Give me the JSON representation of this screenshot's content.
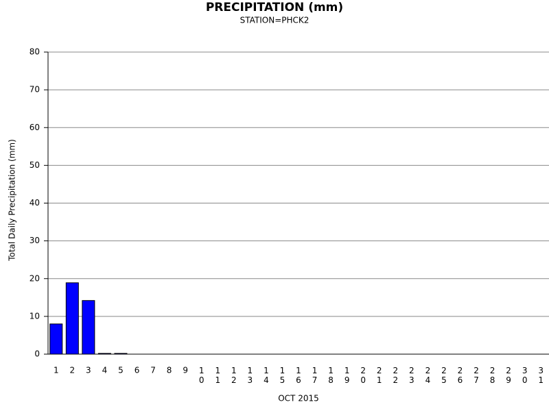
{
  "chart_data": {
    "type": "bar",
    "title": "PRECIPITATION (mm)",
    "subtitle": "STATION=PHCK2",
    "x_label": "OCT 2015",
    "y_label": "Total Daily Precipitation (mm)",
    "categories": [
      "1",
      "2",
      "3",
      "4",
      "5",
      "6",
      "7",
      "8",
      "9",
      "10",
      "11",
      "12",
      "13",
      "14",
      "15",
      "16",
      "17",
      "18",
      "19",
      "20",
      "21",
      "22",
      "23",
      "24",
      "25",
      "26",
      "27",
      "28",
      "29",
      "30",
      "31"
    ],
    "values": [
      8.0,
      18.9,
      14.2,
      0.2,
      0.2,
      0,
      0,
      0,
      0,
      0,
      0,
      0,
      0,
      0,
      0,
      0,
      0,
      0,
      0,
      0,
      0,
      0,
      0,
      0,
      0,
      0,
      0,
      0,
      0,
      0,
      0
    ],
    "color": "#0000ff",
    "ylim": [
      0,
      80
    ],
    "yticks": [
      0,
      10,
      20,
      30,
      40,
      50,
      60,
      70,
      80
    ],
    "grid": true
  }
}
